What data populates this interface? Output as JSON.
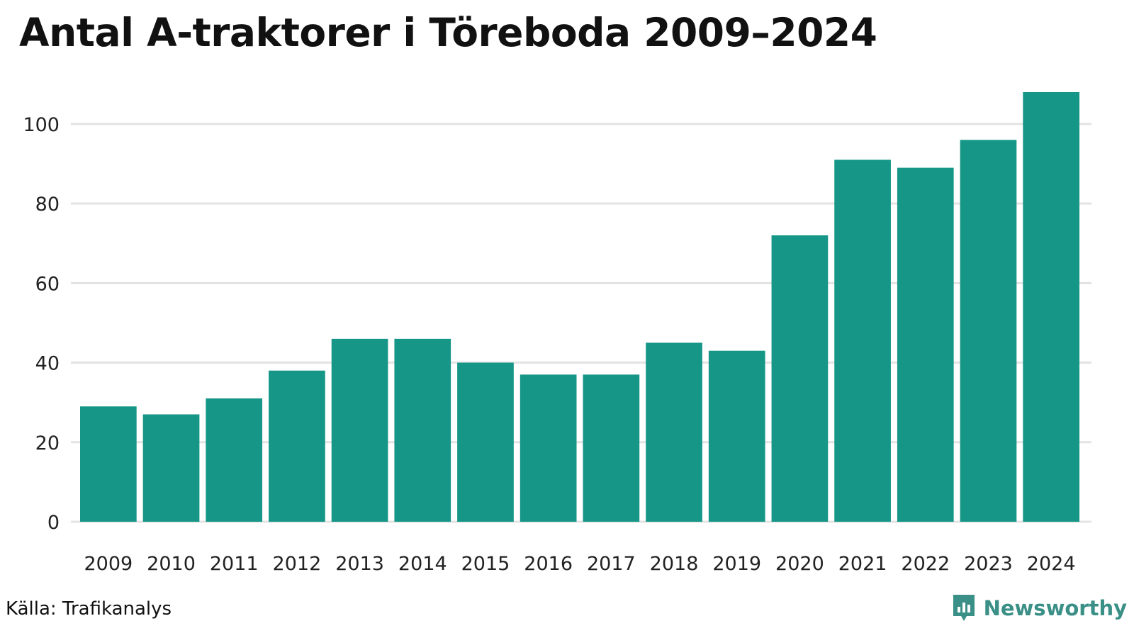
{
  "title": "Antal A-traktorer i Töreboda 2009–2024",
  "source": "Källa: Trafikanalys",
  "brand": {
    "name": "Newsworthy",
    "icon": "bar-chart-logo-icon"
  },
  "colors": {
    "bar": "#159687",
    "grid": "#e3e3e3",
    "brand": "#3a8f86"
  },
  "chart_data": {
    "type": "bar",
    "title": "Antal A-traktorer i Töreboda 2009–2024",
    "xlabel": "",
    "ylabel": "",
    "categories": [
      "2009",
      "2010",
      "2011",
      "2012",
      "2013",
      "2014",
      "2015",
      "2016",
      "2017",
      "2018",
      "2019",
      "2020",
      "2021",
      "2022",
      "2023",
      "2024"
    ],
    "values": [
      29,
      27,
      31,
      38,
      46,
      46,
      40,
      37,
      37,
      45,
      43,
      72,
      91,
      89,
      96,
      108
    ],
    "ylim": [
      0,
      108
    ],
    "yticks": [
      0,
      20,
      40,
      60,
      80,
      100
    ],
    "grid": true,
    "legend": "none"
  }
}
